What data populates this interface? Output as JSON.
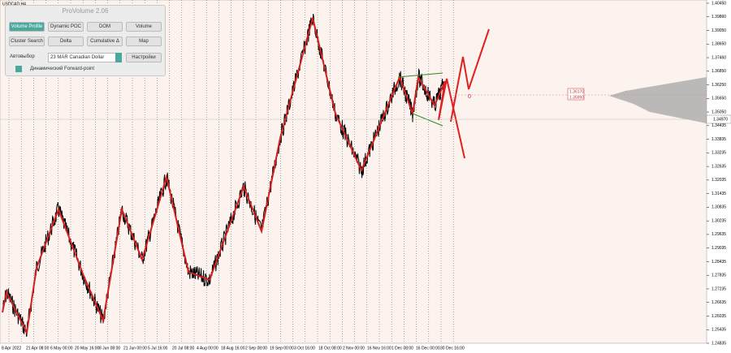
{
  "window": {
    "title": "USDCAD,H4"
  },
  "panel": {
    "title": "ProVolume 2.06",
    "buttons": [
      "Volume Profile",
      "Dynamic POC",
      "DOM",
      "Volume",
      "Cluster Search",
      "Delta",
      "Cumulative Δ",
      "Map"
    ],
    "auto_select": "Автовыбор",
    "instrument": "23 MAR Canadian Dollar",
    "settings": "Настройки",
    "forward_point": "Динамический Forward-point"
  },
  "price_axis": {
    "labels": [
      "1.40450",
      "1.39860",
      "1.39050",
      "1.38650",
      "1.37460",
      "1.36850",
      "1.36250",
      "1.35650",
      "1.35050",
      "1.34435",
      "1.33835",
      "1.33235",
      "1.32635",
      "1.32035",
      "1.31435",
      "1.30835",
      "1.30235",
      "1.29635",
      "1.29035",
      "1.28435",
      "1.27835",
      "1.27235",
      "1.26635",
      "1.26035",
      "1.25435",
      "1.24835"
    ],
    "current": "1.34970"
  },
  "time_axis": {
    "labels": [
      "8 Apr 2022",
      "21 Apr 08:00",
      "6 May 00:00",
      "20 May 16:00",
      "8 Jun 08:00",
      "21 Jun 00:00",
      "5 Jul 16:00",
      "20 Jul 08:00",
      "4 Aug 00:00",
      "18 Aug 16:00",
      "2 Sep 08:00",
      "19 Sep 00:00",
      "3 Oct 16:00",
      "18 Oct 08:00",
      "2 Nov 00:00",
      "16 Nov 16:00",
      "1 Dec 08:00",
      "16 Dec 00:00",
      "30 Dec 16:00"
    ]
  },
  "annotations": {
    "level_labels": [
      "1.36170",
      "1.35950"
    ],
    "wave_label": "0"
  }
}
